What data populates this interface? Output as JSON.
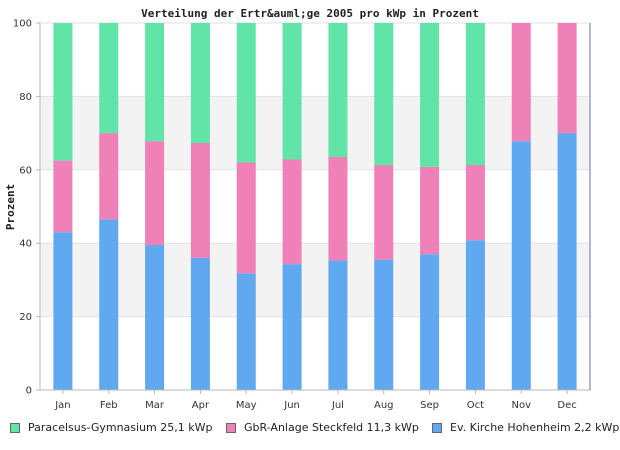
{
  "chart_data": {
    "type": "bar",
    "stacked": true,
    "title": "Verteilung der Ertr&auml;ge 2005 pro kWp in Prozent",
    "xlabel": "",
    "ylabel": "Prozent",
    "ylim": [
      0,
      100
    ],
    "yticks": [
      0,
      20,
      40,
      60,
      80,
      100
    ],
    "categories": [
      "Jan",
      "Feb",
      "Mar",
      "Apr",
      "May",
      "Jun",
      "Jul",
      "Aug",
      "Sep",
      "Oct",
      "Nov",
      "Dec"
    ],
    "series": [
      {
        "name": "Ev. Kirche Hohenheim 2,2 kWp",
        "color": "#60a8f0",
        "values": [
          43,
          46.5,
          39.5,
          36,
          31.8,
          34.3,
          35.3,
          35.5,
          37,
          40.8,
          67.8,
          70
        ]
      },
      {
        "name": "GbR-Anlage Steckfeld 11,3 kWp",
        "color": "#f080b8",
        "values": [
          19.5,
          23.5,
          28.3,
          31.3,
          30.2,
          28.5,
          28.2,
          25.8,
          23.8,
          20.5,
          32.2,
          30
        ]
      },
      {
        "name": "Paracelsus-Gymnasium 25,1 kWp",
        "color": "#60e4a8",
        "values": [
          37.5,
          30,
          32.2,
          32.7,
          38,
          37.2,
          36.5,
          38.7,
          39.2,
          38.7,
          0,
          0
        ]
      }
    ],
    "legend_order": [
      2,
      1,
      0
    ],
    "grid": true,
    "legend_position": "bottom"
  }
}
